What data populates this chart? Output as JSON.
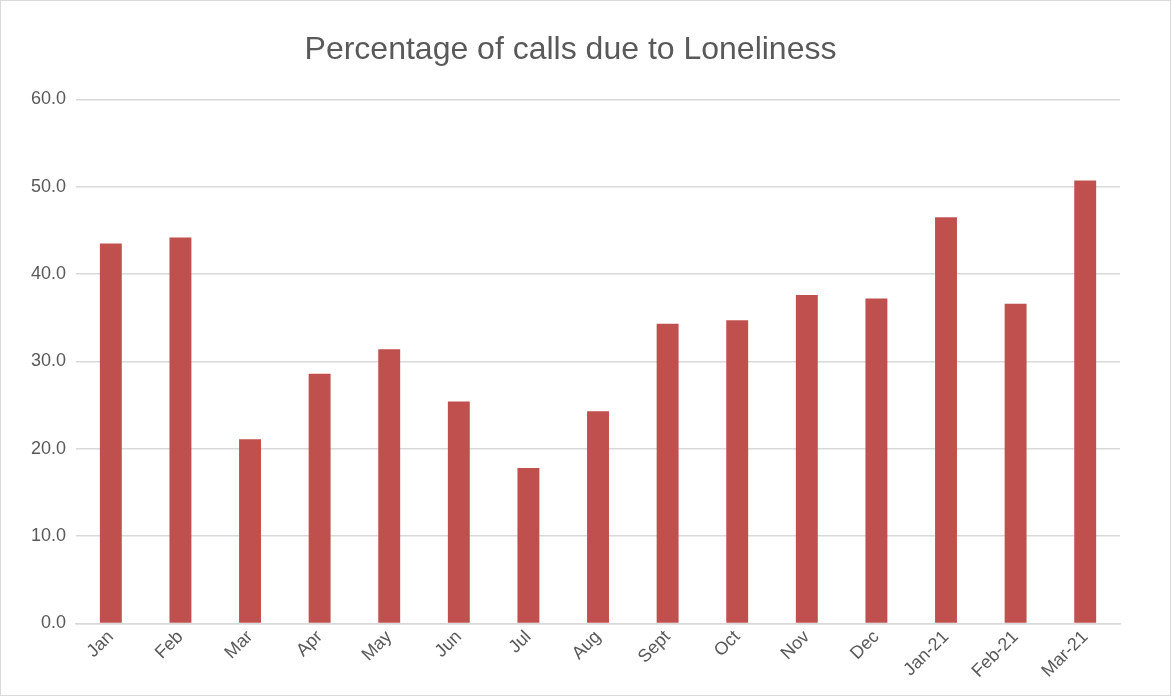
{
  "chart_data": {
    "type": "bar",
    "title": "Percentage of calls due to Loneliness",
    "categories": [
      "Jan",
      "Feb",
      "Mar",
      "Apr",
      "May",
      "Jun",
      "Jul",
      "Aug",
      "Sept",
      "Oct",
      "Nov",
      "Dec",
      "Jan-21",
      "Feb-21",
      "Mar-21"
    ],
    "values": [
      43.5,
      44.2,
      21.1,
      28.6,
      31.4,
      25.4,
      17.8,
      24.3,
      34.3,
      34.7,
      37.6,
      37.2,
      46.5,
      36.6,
      50.7
    ],
    "color": "#c0504d",
    "ylim": [
      0,
      60
    ],
    "yticks": [
      {
        "value": 0,
        "label": "0.0"
      },
      {
        "value": 10,
        "label": "10.0"
      },
      {
        "value": 20,
        "label": "20.0"
      },
      {
        "value": 30,
        "label": "30.0"
      },
      {
        "value": 40,
        "label": "40.0"
      },
      {
        "value": 50,
        "label": "50.0"
      },
      {
        "value": 60,
        "label": "60.0"
      }
    ],
    "grid": "y",
    "legend": false
  }
}
